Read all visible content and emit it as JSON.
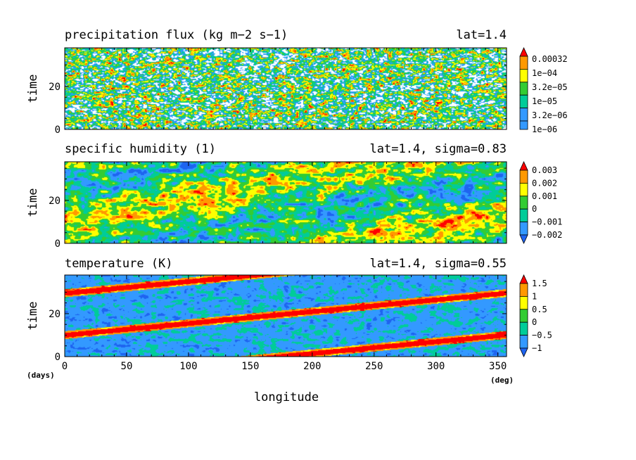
{
  "chart_data": [
    {
      "type": "heatmap",
      "title": "precipitation flux (kg m−2 s−1)",
      "right_title": "lat=1.4",
      "ylabel": "time",
      "y_ticks": [
        "0",
        "20"
      ],
      "ylim": [
        0,
        38
      ],
      "xlim": [
        0,
        357
      ],
      "colorbar": {
        "labels": [
          "1e−06",
          "3.2e−06",
          "1e−05",
          "3.2e−05",
          "1e−04",
          "0.00032"
        ],
        "colors": [
          "#3399ff",
          "#00cc99",
          "#33cc33",
          "#ffff00",
          "#ff9900",
          "#ff0000"
        ]
      }
    },
    {
      "type": "heatmap",
      "title": "specific humidity (1)",
      "right_title": "lat=1.4, sigma=0.83",
      "ylabel": "time",
      "y_ticks": [
        "0",
        "20"
      ],
      "ylim": [
        0,
        38
      ],
      "xlim": [
        0,
        357
      ],
      "colorbar": {
        "labels": [
          "−0.002",
          "−0.001",
          "0",
          "0.001",
          "0.002",
          "0.003"
        ],
        "colors": [
          "#1e64f0",
          "#3399ff",
          "#00cc99",
          "#33cc33",
          "#ffff00",
          "#ff9900",
          "#ff0000"
        ]
      }
    },
    {
      "type": "heatmap",
      "title": "temperature (K)",
      "right_title": "lat=1.4, sigma=0.55",
      "ylabel": "time",
      "y_ticks": [
        "0",
        "20"
      ],
      "ylim": [
        0,
        38
      ],
      "xlim": [
        0,
        357
      ],
      "xlabel": "longitude",
      "x_ticks": [
        "0",
        "50",
        "100",
        "150",
        "200",
        "250",
        "300",
        "350"
      ],
      "x_unit": "(deg)",
      "y_unit": "(days)",
      "colorbar": {
        "labels": [
          "−1",
          "−0.5",
          "0",
          "0.5",
          "1",
          "1.5"
        ],
        "colors": [
          "#1e64f0",
          "#3399ff",
          "#00cc99",
          "#33cc33",
          "#ffff00",
          "#ff9900",
          "#ff0000"
        ]
      }
    }
  ]
}
